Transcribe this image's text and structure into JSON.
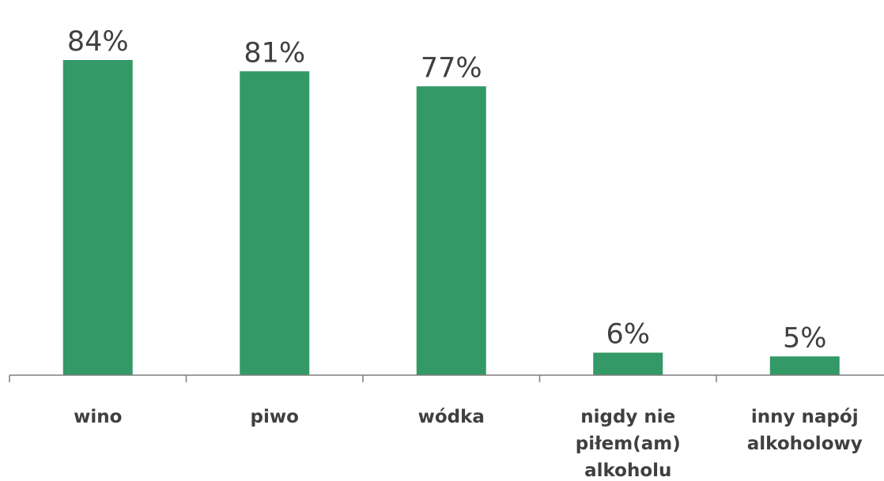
{
  "chart_data": {
    "type": "bar",
    "categories": [
      [
        "wino"
      ],
      [
        "piwo"
      ],
      [
        "wódka"
      ],
      [
        "nigdy nie",
        "piłem(am)",
        "alkoholu"
      ],
      [
        "inny napój",
        "alkoholowy"
      ]
    ],
    "values": [
      84,
      81,
      77,
      6,
      5
    ],
    "value_labels": [
      "84%",
      "81%",
      "77%",
      "6%",
      "5%"
    ],
    "unit": "%",
    "ylim": [
      0,
      100
    ],
    "grid": false,
    "bar_color": "#339966",
    "text_color": "#404040",
    "axis_color": "#7f7f7f"
  }
}
